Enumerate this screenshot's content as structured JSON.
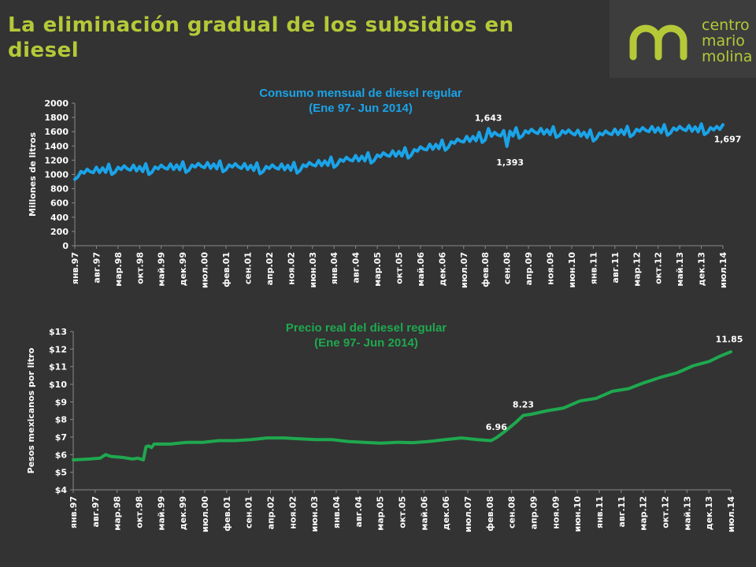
{
  "page": {
    "title_line1": "La eliminación gradual de los subsidios en",
    "title_line2": "diesel"
  },
  "logo": {
    "lines": [
      "centro",
      "mario",
      "molina"
    ],
    "color": "#b5c938"
  },
  "chart_data": [
    {
      "type": "line",
      "title_line1": "Consumo mensual de diesel regular",
      "title_line2": "(Ene 97- Jun 2014)",
      "title_color": "#1aa3e8",
      "line_color": "#1aa3e8",
      "ylabel": "Millones de litros",
      "ylim": [
        0,
        2000
      ],
      "yticks": [
        "0",
        "200",
        "400",
        "600",
        "800",
        "1000",
        "1200",
        "1400",
        "1600",
        "1800",
        "2000"
      ],
      "x_start": "1997-01",
      "x_end": "2014-07",
      "xticks": [
        "янв.97",
        "авг.97",
        "мар.98",
        "окт.98",
        "май.99",
        "дек.99",
        "июл.00",
        "фев.01",
        "сен.01",
        "апр.02",
        "ноя.02",
        "июн.03",
        "янв.04",
        "авг.04",
        "мар.05",
        "окт.05",
        "май.06",
        "дек.06",
        "июл.07",
        "фев.08",
        "сен.08",
        "апр.09",
        "ноя.09",
        "июн.10",
        "янв.11",
        "авг.11",
        "мар.12",
        "окт.12",
        "май.13",
        "дек.13",
        "июл.14"
      ],
      "anchors": [
        [
          0,
          1000
        ],
        [
          12,
          1070
        ],
        [
          24,
          1070
        ],
        [
          36,
          1100
        ],
        [
          48,
          1110
        ],
        [
          60,
          1080
        ],
        [
          72,
          1090
        ],
        [
          84,
          1170
        ],
        [
          96,
          1230
        ],
        [
          108,
          1300
        ],
        [
          120,
          1410
        ],
        [
          132,
          1520
        ],
        [
          144,
          1580
        ],
        [
          156,
          1590
        ],
        [
          168,
          1540
        ],
        [
          180,
          1600
        ],
        [
          192,
          1620
        ],
        [
          204,
          1630
        ],
        [
          210,
          1620
        ]
      ],
      "seasonal": [
        -70,
        -40,
        30,
        0,
        50,
        10,
        -10,
        60,
        -20,
        40,
        -30,
        80
      ],
      "annotations": [
        {
          "label": "1,643",
          "x": 134,
          "y": 1643
        },
        {
          "label": "1,393",
          "x": 140,
          "y": 1393
        },
        {
          "label": "1,697",
          "x": 210,
          "y": 1697
        }
      ]
    },
    {
      "type": "line",
      "title_line1": "Precio real del diesel regular",
      "title_line2": "(Ene 97- Jun 2014)",
      "title_color": "#1fa84f",
      "line_color": "#1fa84f",
      "ylabel": "Pesos mexicanos por litro",
      "ylim": [
        4,
        13
      ],
      "yticks": [
        "$4",
        "$5",
        "$6",
        "$7",
        "$8",
        "$9",
        "$10",
        "$11",
        "$12",
        "$13"
      ],
      "x_start": "1997-01",
      "x_end": "2014-07",
      "xticks": [
        "янв.97",
        "авг.97",
        "мар.98",
        "окт.98",
        "май.99",
        "дек.99",
        "июл.00",
        "фев.01",
        "сен.01",
        "апр.02",
        "ноя.02",
        "июн.03",
        "янв.04",
        "авг.04",
        "мар.05",
        "окт.05",
        "май.06",
        "дек.06",
        "июл.07",
        "фев.08",
        "сен.08",
        "апр.09",
        "ноя.09",
        "июн.10",
        "янв.11",
        "авг.11",
        "мар.12",
        "окт.12",
        "май.13",
        "дек.13",
        "июл.14"
      ],
      "points": [
        [
          0,
          5.7
        ],
        [
          6,
          5.75
        ],
        [
          10,
          5.8
        ],
        [
          12,
          6.0
        ],
        [
          14,
          5.9
        ],
        [
          18,
          5.85
        ],
        [
          22,
          5.75
        ],
        [
          24,
          5.8
        ],
        [
          26,
          5.7
        ],
        [
          27,
          6.45
        ],
        [
          28,
          6.5
        ],
        [
          29,
          6.4
        ],
        [
          30,
          6.6
        ],
        [
          36,
          6.6
        ],
        [
          42,
          6.7
        ],
        [
          48,
          6.7
        ],
        [
          54,
          6.8
        ],
        [
          60,
          6.8
        ],
        [
          66,
          6.85
        ],
        [
          72,
          6.95
        ],
        [
          78,
          6.95
        ],
        [
          84,
          6.9
        ],
        [
          90,
          6.85
        ],
        [
          96,
          6.85
        ],
        [
          102,
          6.75
        ],
        [
          108,
          6.7
        ],
        [
          114,
          6.65
        ],
        [
          120,
          6.7
        ],
        [
          126,
          6.68
        ],
        [
          132,
          6.75
        ],
        [
          138,
          6.85
        ],
        [
          144,
          6.95
        ],
        [
          150,
          6.85
        ],
        [
          155,
          6.8
        ],
        [
          157,
          6.96
        ],
        [
          160,
          7.3
        ],
        [
          164,
          7.8
        ],
        [
          167,
          8.23
        ],
        [
          170,
          8.3
        ],
        [
          176,
          8.5
        ],
        [
          182,
          8.65
        ],
        [
          188,
          9.05
        ],
        [
          194,
          9.2
        ],
        [
          200,
          9.6
        ],
        [
          206,
          9.75
        ],
        [
          212,
          10.1
        ],
        [
          218,
          10.4
        ],
        [
          224,
          10.65
        ],
        [
          230,
          11.05
        ],
        [
          236,
          11.3
        ],
        [
          240,
          11.6
        ],
        [
          244,
          11.85
        ]
      ],
      "annotations": [
        {
          "label": "6.96",
          "x": 157,
          "y": 6.96
        },
        {
          "label": "8.23",
          "x": 167,
          "y": 8.23
        },
        {
          "label": "11.85",
          "x": 244,
          "y": 11.85
        }
      ]
    }
  ]
}
